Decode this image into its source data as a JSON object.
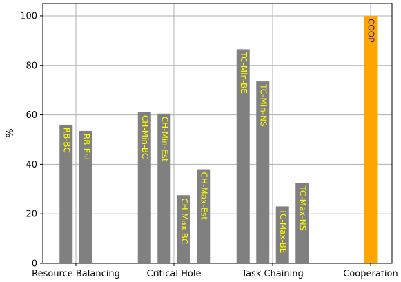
{
  "chart_data": {
    "type": "bar",
    "title": "",
    "xlabel": "",
    "ylabel": "%",
    "ylim": [
      0,
      105
    ],
    "yticks": [
      0,
      20,
      40,
      60,
      80,
      100
    ],
    "grid": true,
    "legend": "none",
    "groups": [
      {
        "label": "Resource Balancing",
        "bars": [
          {
            "name": "RB-BC",
            "value": 56
          },
          {
            "name": "RB-Est",
            "value": 53.5
          }
        ]
      },
      {
        "label": "Critical Hole",
        "bars": [
          {
            "name": "CH-Min-BC",
            "value": 61
          },
          {
            "name": "CH-Min-Est",
            "value": 60.5
          },
          {
            "name": "CH-Max-BC",
            "value": 27.5
          },
          {
            "name": "CH-Max-Est",
            "value": 38
          }
        ]
      },
      {
        "label": "Task Chaining",
        "bars": [
          {
            "name": "TC-Min-BE",
            "value": 86.5
          },
          {
            "name": "TC-Min-NS",
            "value": 73.5
          },
          {
            "name": "TC-Max-BE",
            "value": 23
          },
          {
            "name": "TC-Max-NS",
            "value": 32.5
          }
        ]
      },
      {
        "label": "Cooperation",
        "bars": [
          {
            "name": "COOP",
            "value": 100,
            "highlight": true
          }
        ]
      }
    ],
    "colors": {
      "bar": "#808080",
      "highlight_bar": "#ffa500",
      "label": "#ffff00",
      "highlight_label": "#1f1fa0",
      "grid": "#b0b0b0",
      "axis": "#000000"
    }
  }
}
